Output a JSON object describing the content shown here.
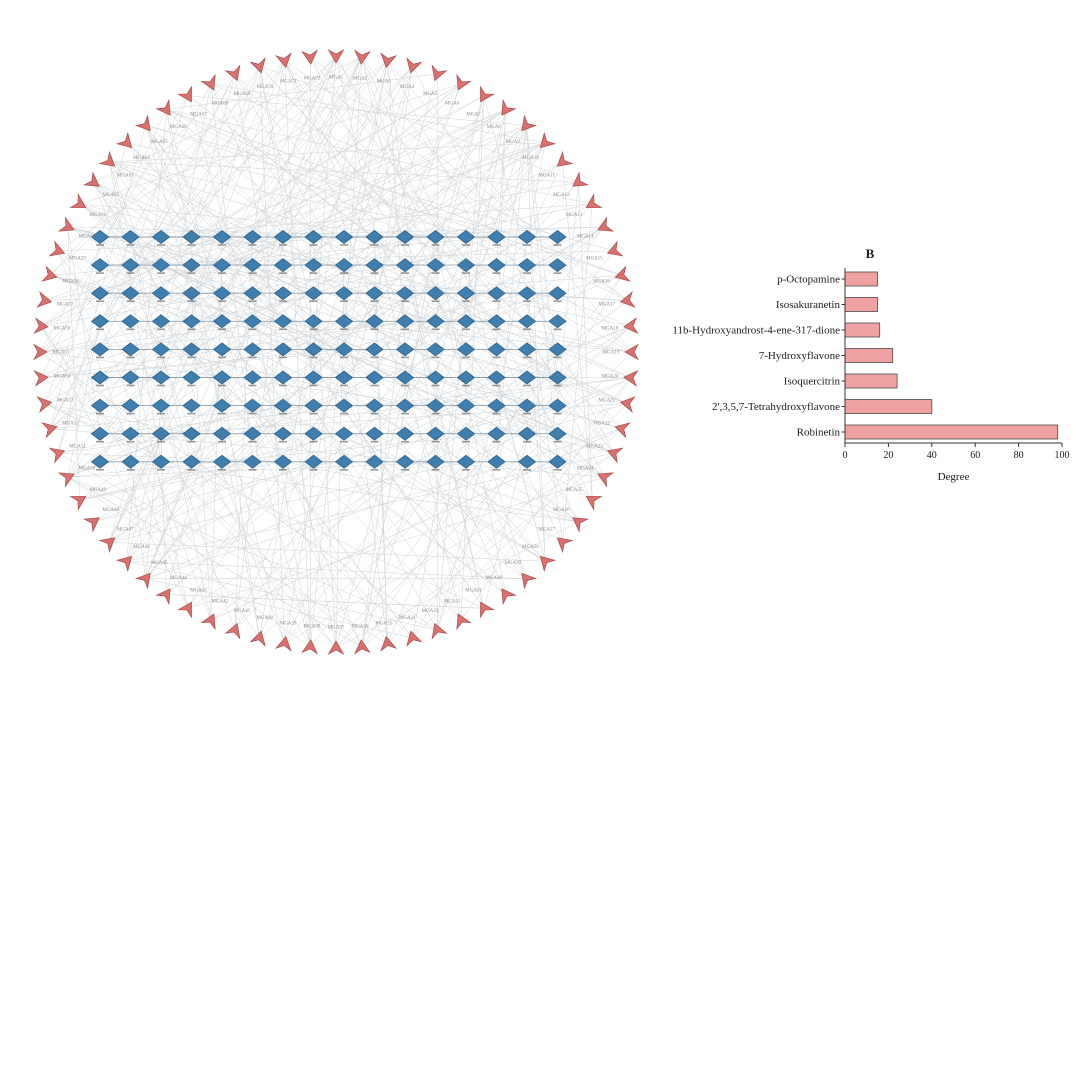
{
  "figure": {
    "panel_label": "B",
    "network": {
      "outer_node_count": 72,
      "outer_label_prefix": "MGA",
      "outer_node_color": "#d9716e",
      "outer_node_stroke": "#a94b4b",
      "outer_label_color": "#8a8a8a",
      "inner_node_color": "#3f7fb0",
      "inner_node_stroke": "#2e618c",
      "inner_label_color": "#3a3a3a",
      "grid_cols": 16,
      "grid_rows": 9,
      "edge_color": "#a9b2b6",
      "connector_color": "#7a8a96"
    }
  },
  "chart_data": {
    "type": "bar",
    "orientation": "horizontal",
    "categories": [
      "p-Octopamine",
      "Isosakuranetin",
      "11b-Hydroxyandrost-4-ene-317-dione",
      "7-Hydroxyflavone",
      "Isoquercitrin",
      "2',3,5,7-Tetrahydroxyflavone",
      "Robinetin"
    ],
    "values": [
      15,
      15,
      16,
      22,
      24,
      40,
      98
    ],
    "xlabel": "Degree",
    "xlim": [
      0,
      100
    ],
    "xticks": [
      0,
      20,
      40,
      60,
      80,
      100
    ],
    "grid": false,
    "legend": false,
    "bar_color": "#f0a2a2",
    "bar_edge_color": "#4d4d4d",
    "axis_color": "#333333",
    "label_color": "#1a1a1a"
  }
}
